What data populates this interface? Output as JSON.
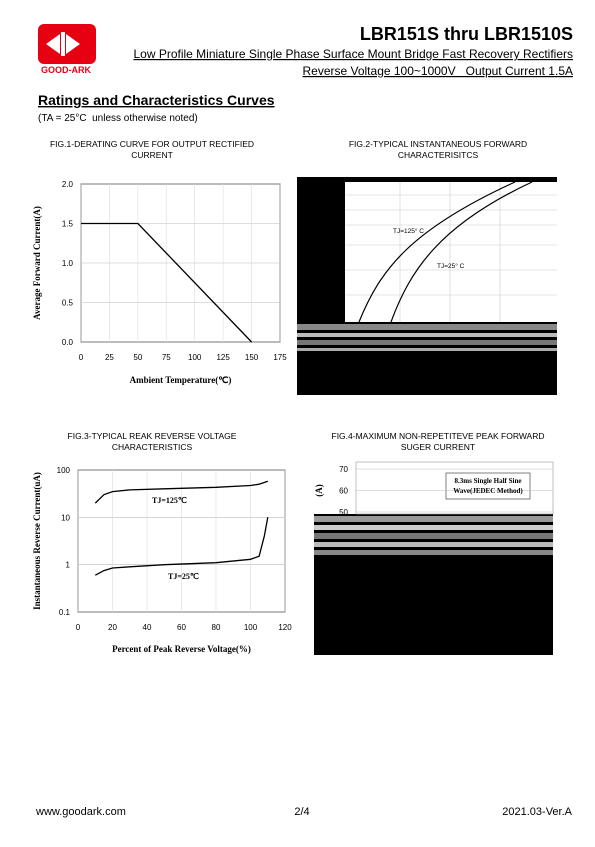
{
  "header": {
    "logo_text": "GOOD-ARK",
    "title": "LBR151S thru LBR1510S",
    "subtitle": "Low Profile Miniature Single Phase Surface Mount Bridge Fast Recovery Rectifiers",
    "specs": "Reverse Voltage 100~1000V   Output Current 1.5A"
  },
  "section": {
    "title": "Ratings and Characteristics Curves",
    "note": "(TA = 25°C  unless otherwise noted)"
  },
  "chart_data": [
    {
      "type": "line",
      "title": [
        "FIG.1-DERATING CURVE FOR OUTPUT RECTIFIED",
        "CURRENT"
      ],
      "xlabel": "Ambient Temperature(℃)",
      "ylabel": "Average Forward Current(A)",
      "xlim": [
        0,
        175
      ],
      "xticks": [
        0,
        25,
        50,
        75,
        100,
        125,
        150,
        175
      ],
      "ylim": [
        0,
        2
      ],
      "yticks": [
        {
          "value": 0,
          "label": "0.0"
        },
        {
          "value": 0.5,
          "label": "0.5"
        },
        {
          "value": 1,
          "label": "1.0"
        },
        {
          "value": 1.5,
          "label": "1.5"
        },
        {
          "value": 2,
          "label": "2.0"
        }
      ],
      "grid": true,
      "series": [
        {
          "x": [
            0,
            50,
            150
          ],
          "values": [
            1.5,
            1.5,
            0
          ],
          "color": "#000000"
        }
      ]
    },
    {
      "type": "line",
      "title": [
        "FIG.2-TYPICAL INSTANTANEOUS FORWARD",
        "CHARACTERISITCS"
      ],
      "annotations": [
        "TJ=125° C",
        "TJ=25° C"
      ]
    },
    {
      "type": "line",
      "title": [
        "FIG.3-TYPICAL REAK REVERSE VOLTAGE",
        "CHARACTERISTICS"
      ],
      "xlabel": "Percent of Peak Reverse Voltage(%)",
      "ylabel": "Instantaneous Reverse Current(uA)",
      "xlim": [
        0,
        120
      ],
      "xticks": [
        0,
        20,
        40,
        60,
        80,
        100,
        120
      ],
      "ylim": [
        0.1,
        100
      ],
      "yticks": [
        0.1,
        1,
        10,
        100
      ],
      "log_y": true,
      "grid": true,
      "series": [
        {
          "name": "TJ=125℃",
          "x": [
            10,
            15,
            20,
            30,
            50,
            80,
            100,
            105,
            110
          ],
          "values": [
            20,
            30,
            35,
            38,
            40,
            43,
            47,
            50,
            58
          ],
          "color": "#000000"
        },
        {
          "name": "TJ=25℃",
          "x": [
            10,
            15,
            20,
            30,
            50,
            80,
            100,
            105,
            108,
            110
          ],
          "values": [
            0.6,
            0.75,
            0.85,
            0.9,
            1,
            1.1,
            1.3,
            1.5,
            4,
            10
          ],
          "color": "#000000"
        }
      ]
    },
    {
      "type": "line",
      "title": [
        "FIG.4-MAXIMUM NON-REPETITEVE PEAK FORWARD",
        "SUGER CURRENT"
      ],
      "ylabel": "(A)",
      "ylim": [
        50,
        70
      ],
      "yticks": [
        50,
        60,
        70
      ],
      "grid": true,
      "annotations": [
        "8.3ms Single Half Sine",
        "Wave(JEDEC Method)"
      ]
    }
  ],
  "footer": {
    "website": "www.goodark.com",
    "page": "2/4",
    "version": "2021.03-Ver.A"
  }
}
